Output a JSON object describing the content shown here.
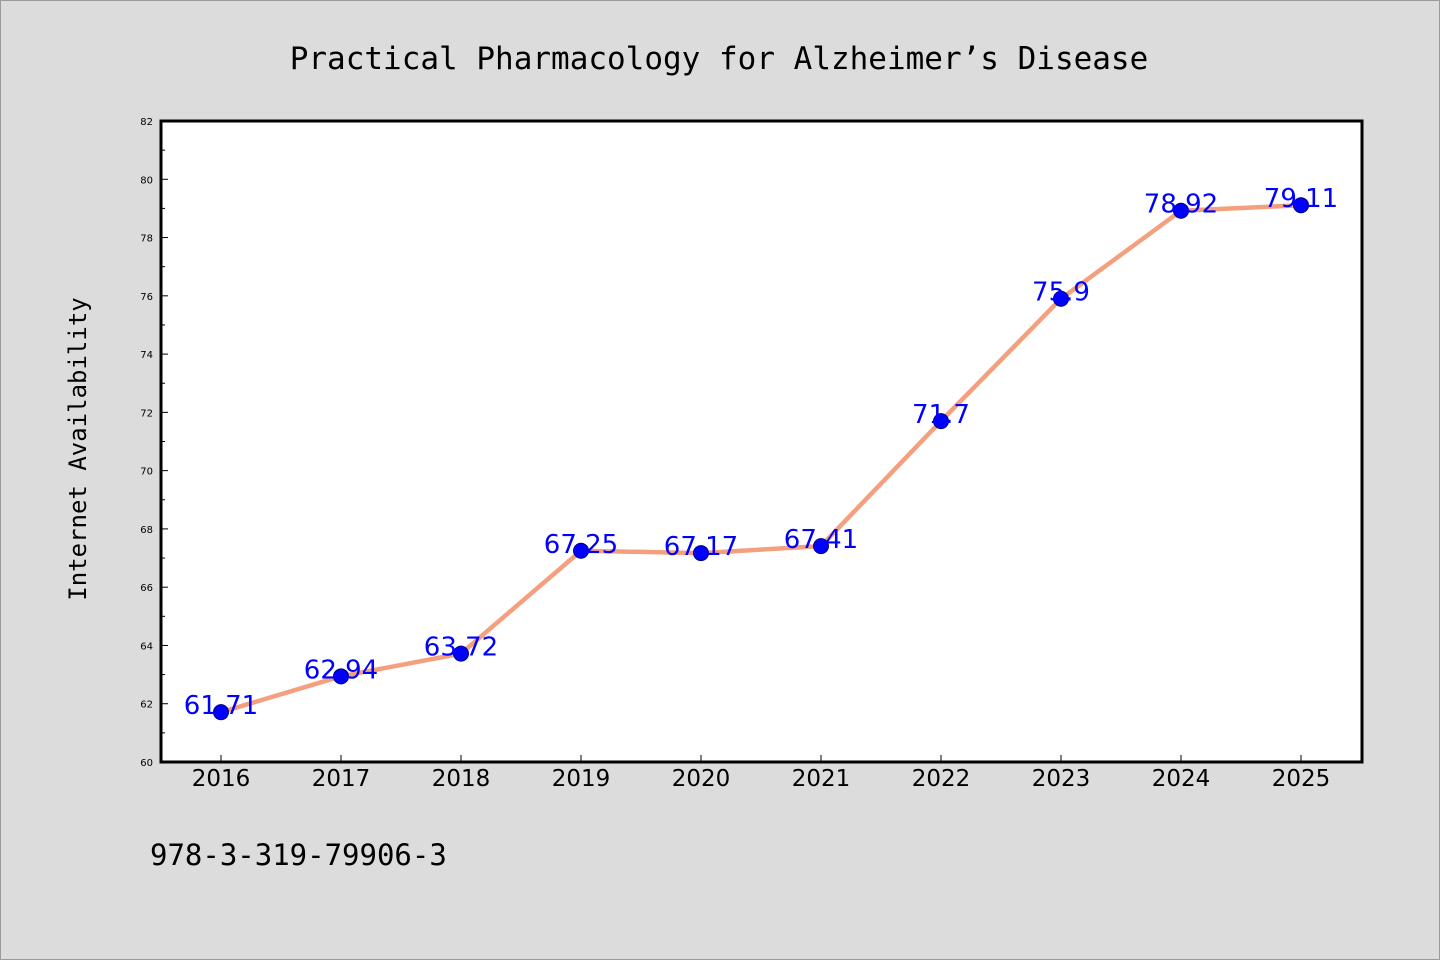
{
  "chart_data": {
    "type": "line",
    "title": "Practical Pharmacology for Alzheimer’s Disease",
    "xlabel": "",
    "ylabel": "Internet Availability",
    "categories": [
      "2016",
      "2017",
      "2018",
      "2019",
      "2020",
      "2021",
      "2022",
      "2023",
      "2024",
      "2025"
    ],
    "values": [
      61.71,
      62.94,
      63.72,
      67.25,
      67.17,
      67.41,
      71.7,
      75.9,
      78.92,
      79.11
    ],
    "data_labels": [
      "61.71",
      "62.94",
      "63.72",
      "67.25",
      "67.17",
      "67.41",
      "71.7",
      "75.9",
      "78.92",
      "79.11"
    ],
    "ylim": [
      60,
      82
    ],
    "yticks": [
      60,
      62,
      64,
      66,
      68,
      70,
      72,
      74,
      76,
      78,
      80,
      82
    ],
    "grid": false,
    "legend": "none",
    "colors": {
      "line": "#f4a07e",
      "marker_fill": "#0000ff",
      "marker_edge": "#000080",
      "data_label": "#0000ff",
      "plot_background": "#ffffff",
      "page_background": "#dcdcdc"
    }
  },
  "footer": {
    "isbn": "978-3-319-79906-3"
  }
}
